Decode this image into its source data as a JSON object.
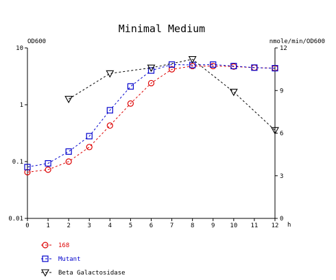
{
  "chart_data": {
    "type": "line",
    "title": "Minimal Medium",
    "x": [
      0,
      1,
      2,
      3,
      4,
      5,
      6,
      7,
      8,
      9,
      10,
      11,
      12
    ],
    "x_tick_labels": [
      "0",
      "1",
      "2",
      "3",
      "4",
      "5",
      "6",
      "7",
      "8",
      "9",
      "10",
      "11",
      "12"
    ],
    "xlabel": "h",
    "xlim": [
      0,
      12
    ],
    "y_left": {
      "label": "OD600",
      "scale": "log",
      "lim": [
        0.01,
        10
      ],
      "ticks": [
        0.01,
        0.1,
        1,
        10
      ],
      "tick_labels": [
        "0.01",
        "0.1",
        "1",
        "10"
      ]
    },
    "y_right": {
      "label": "nmole/min/OD600",
      "scale": "linear",
      "lim": [
        0,
        12
      ],
      "ticks": [
        0,
        3,
        6,
        9,
        12
      ],
      "tick_labels": [
        "0",
        "3",
        "6",
        "9",
        "12"
      ]
    },
    "grid": false,
    "legend_position": "bottom-left",
    "series": [
      {
        "name": "168",
        "axis": "left",
        "color": "#dd0000",
        "marker": "circle",
        "x": [
          0,
          1,
          2,
          3,
          4,
          5,
          6,
          7,
          8,
          9,
          10,
          11,
          12
        ],
        "values": [
          0.065,
          0.072,
          0.1,
          0.18,
          0.43,
          1.05,
          2.4,
          4.2,
          4.8,
          4.8,
          4.7,
          4.5,
          4.4
        ]
      },
      {
        "name": "Mutant",
        "axis": "left",
        "color": "#0000cc",
        "marker": "square",
        "x": [
          0,
          1,
          2,
          3,
          4,
          5,
          6,
          7,
          8,
          9,
          10,
          11,
          12
        ],
        "values": [
          0.08,
          0.093,
          0.15,
          0.28,
          0.8,
          2.1,
          4.0,
          5.1,
          5.0,
          5.1,
          4.8,
          4.5,
          4.4
        ]
      },
      {
        "name": "Beta Galactosidase",
        "axis": "right",
        "color": "#000000",
        "marker": "triangle-down",
        "x": [
          2,
          4,
          6,
          8,
          10,
          12
        ],
        "values": [
          8.4,
          10.2,
          10.6,
          11.2,
          8.9,
          6.2
        ]
      }
    ]
  }
}
